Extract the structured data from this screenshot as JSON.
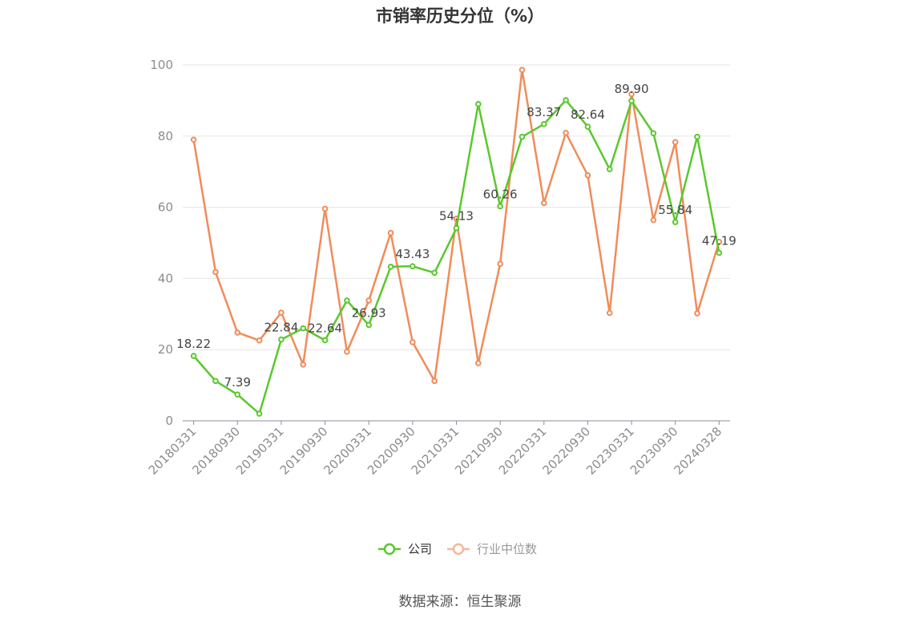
{
  "title": "市销率历史分位（%）",
  "source": "数据来源：恒生聚源",
  "colors": {
    "company": "#5ac82d",
    "industry": "#f08c5a",
    "grid": "#e6e6e6",
    "axis": "#8c8c9c"
  },
  "chart_data": {
    "type": "line",
    "title": "市销率历史分位（%）",
    "ylim": [
      0,
      100
    ],
    "yticks": [
      0,
      20,
      40,
      60,
      80,
      100
    ],
    "grid": true,
    "legend_position": "bottom-center",
    "x": [
      "20180331",
      "20180630",
      "20180930",
      "20181231",
      "20190331",
      "20190630",
      "20190930",
      "20191231",
      "20200331",
      "20200630",
      "20200930",
      "20201231",
      "20210331",
      "20210630",
      "20210930",
      "20211231",
      "20220331",
      "20220630",
      "20220930",
      "20221231",
      "20230331",
      "20230630",
      "20230930",
      "20231231",
      "20240328"
    ],
    "xtick_labels": [
      "20180331",
      "20180930",
      "20190331",
      "20190930",
      "20200331",
      "20200930",
      "20210331",
      "20210930",
      "20220331",
      "20220930",
      "20230331",
      "20230930",
      "20240328"
    ],
    "series": [
      {
        "name": "公司",
        "values": [
          18.22,
          11.2,
          7.39,
          2.0,
          22.84,
          26.0,
          22.64,
          33.8,
          26.93,
          43.3,
          43.43,
          41.6,
          54.13,
          89.0,
          60.26,
          79.8,
          83.37,
          90.1,
          82.64,
          70.7,
          89.9,
          80.8,
          55.84,
          79.8,
          47.19
        ],
        "labels": [
          "18.22",
          null,
          "7.39",
          null,
          "22.84",
          null,
          "22.64",
          null,
          "26.93",
          null,
          "43.43",
          null,
          "54.13",
          null,
          "60.26",
          null,
          "83.37",
          null,
          "82.64",
          null,
          "89.90",
          null,
          "55.84",
          null,
          "47.19"
        ]
      },
      {
        "name": "行业中位数",
        "values": [
          79.0,
          41.8,
          24.8,
          22.6,
          30.4,
          15.8,
          59.6,
          19.4,
          33.8,
          52.8,
          22.1,
          11.2,
          56.8,
          16.2,
          44.1,
          98.6,
          61.2,
          80.9,
          69.0,
          30.3,
          91.8,
          56.4,
          78.3,
          30.2,
          50.3
        ]
      }
    ]
  }
}
